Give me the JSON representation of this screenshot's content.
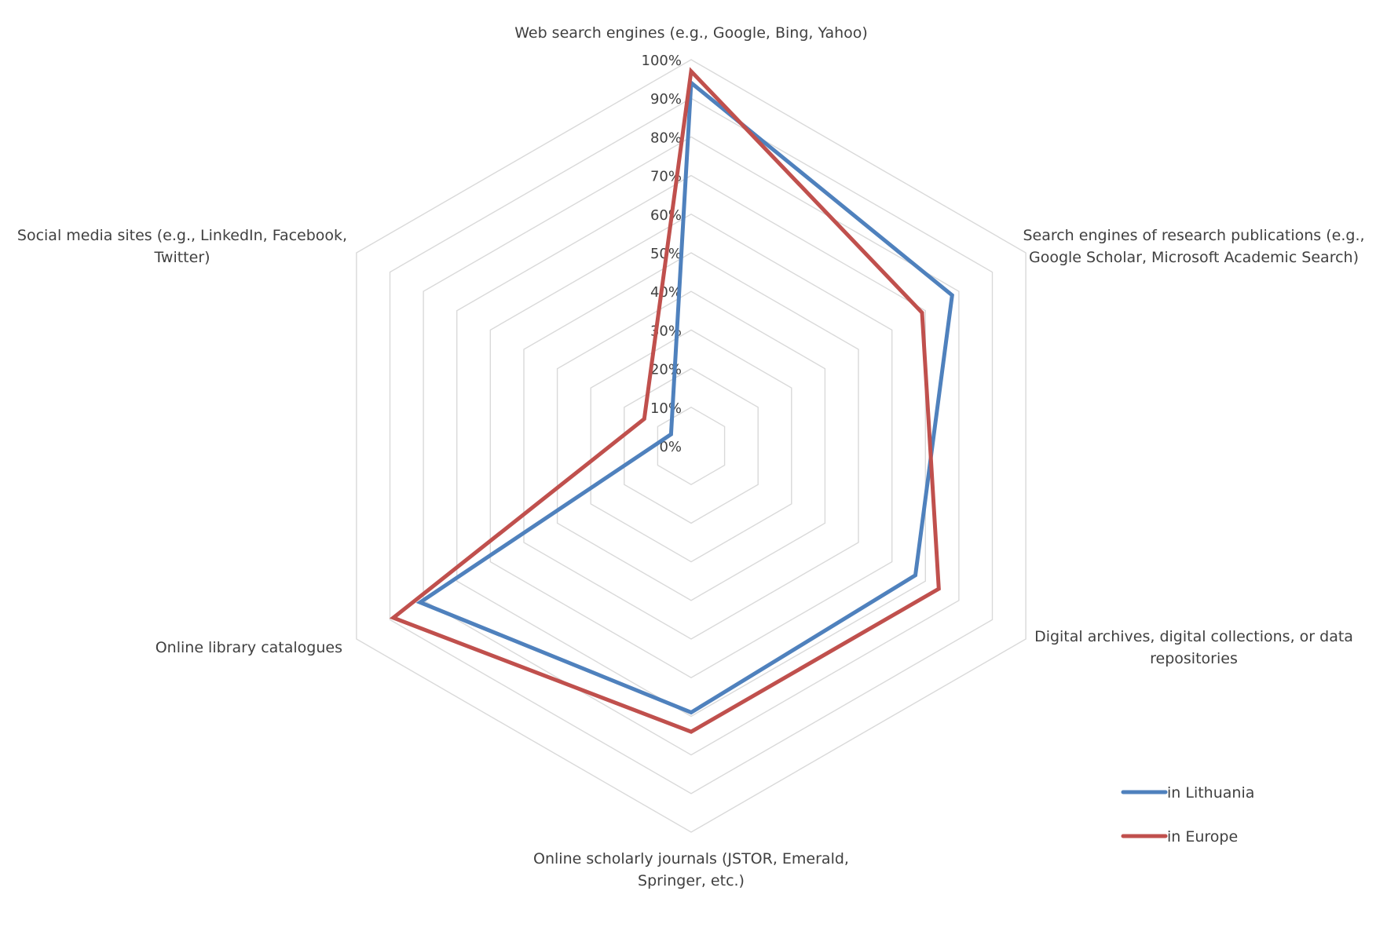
{
  "chart_data": {
    "type": "radar",
    "categories": [
      "Web search engines (e.g., Google, Bing, Yahoo)",
      "Search engines of research publications (e.g., Google Scholar, Microsoft Academic Search)",
      "Digital archives, digital collections, or data repositories",
      "Online scholarly journals (JSTOR, Emerald, Springer, etc.)",
      "Online library catalogues",
      "Social media sites (e.g., LinkedIn, Facebook, Twitter)"
    ],
    "category_lines": [
      [
        "Web search engines (e.g., Google, Bing, Yahoo)"
      ],
      [
        "Search engines of research publications (e.g.,",
        "Google Scholar, Microsoft Academic Search)"
      ],
      [
        "Digital archives, digital collections, or data",
        "repositories"
      ],
      [
        "Online scholarly journals (JSTOR, Emerald,",
        "Springer, etc.)"
      ],
      [
        "Online library catalogues"
      ],
      [
        "Social media sites (e.g., LinkedIn, Facebook,",
        "Twitter)"
      ]
    ],
    "series": [
      {
        "name": "in Lithuania",
        "color": "#4F81BD",
        "values": [
          0.94,
          0.78,
          0.67,
          0.69,
          0.81,
          0.06
        ]
      },
      {
        "name": "in Europe",
        "color": "#C0504D",
        "values": [
          0.97,
          0.69,
          0.74,
          0.74,
          0.89,
          0.14
        ]
      }
    ],
    "r_range": [
      0,
      1
    ],
    "ticks": [
      "0%",
      "10%",
      "20%",
      "30%",
      "40%",
      "50%",
      "60%",
      "70%",
      "80%",
      "90%",
      "100%"
    ],
    "grid": true,
    "grid_color": "#D9D9D9",
    "legend_position": "bottom-right"
  }
}
